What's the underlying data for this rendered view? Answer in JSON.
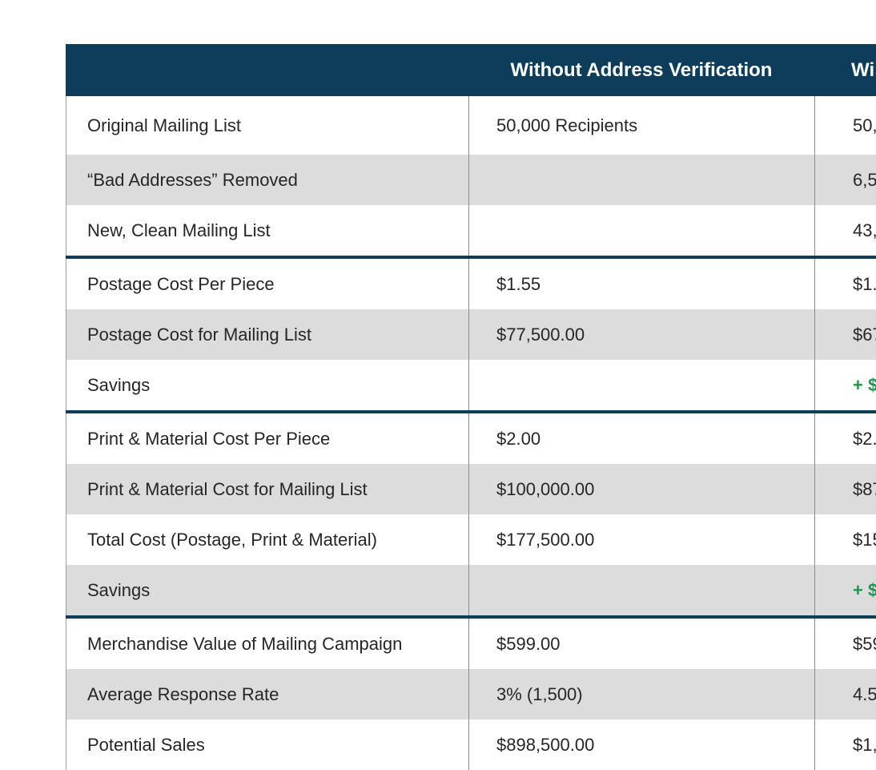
{
  "colors": {
    "header_background": "#0d3d5b",
    "alt_row_background": "#dcdcdc",
    "section_separator": "#0d3d5b",
    "body_text": "#262626",
    "savings_green": "#189a4d",
    "column_divider": "#8c8c8c"
  },
  "table": {
    "header": {
      "label_column": "",
      "without_column": "Without Address Verification",
      "with_column_visible": "Wi",
      "with_column_clipped_by_viewport": true
    },
    "sections": [
      {
        "name": "mailing-list",
        "rows": [
          {
            "label": "Original Mailing List",
            "without": "50,000 Recipients",
            "with_visible": "50,"
          },
          {
            "label": "“Bad Addresses” Removed",
            "without": "",
            "with_visible": "6,5"
          },
          {
            "label": "New, Clean Mailing List",
            "without": "",
            "with_visible": "43,"
          }
        ]
      },
      {
        "name": "postage-costs",
        "rows": [
          {
            "label": "Postage Cost Per Piece",
            "without": "$1.55",
            "with_visible": "$1."
          },
          {
            "label": "Postage Cost for Mailing List",
            "without": "$77,500.00",
            "with_visible": "$67"
          },
          {
            "label": "Savings",
            "without": "",
            "with_visible": "+ $",
            "highlight": "green"
          }
        ]
      },
      {
        "name": "print-material-costs",
        "rows": [
          {
            "label": "Print & Material Cost Per Piece",
            "without": "$2.00",
            "with_visible": "$2."
          },
          {
            "label": "Print & Material Cost for Mailing List",
            "without": "$100,000.00",
            "with_visible": "$87"
          },
          {
            "label": "Total Cost (Postage, Print & Material)",
            "without": "$177,500.00",
            "with_visible": "$15"
          },
          {
            "label": "Savings",
            "without": "",
            "with_visible": "+ $",
            "highlight": "green"
          }
        ]
      },
      {
        "name": "campaign-results",
        "rows": [
          {
            "label": "Merchandise Value of Mailing Campaign",
            "without": "$599.00",
            "with_visible": "$59"
          },
          {
            "label": "Average Response Rate",
            "without": "3% (1,500)",
            "with_visible": "4.5"
          },
          {
            "label": "Potential Sales",
            "without": "$898,500.00",
            "with_visible": "$1,"
          }
        ]
      }
    ]
  }
}
